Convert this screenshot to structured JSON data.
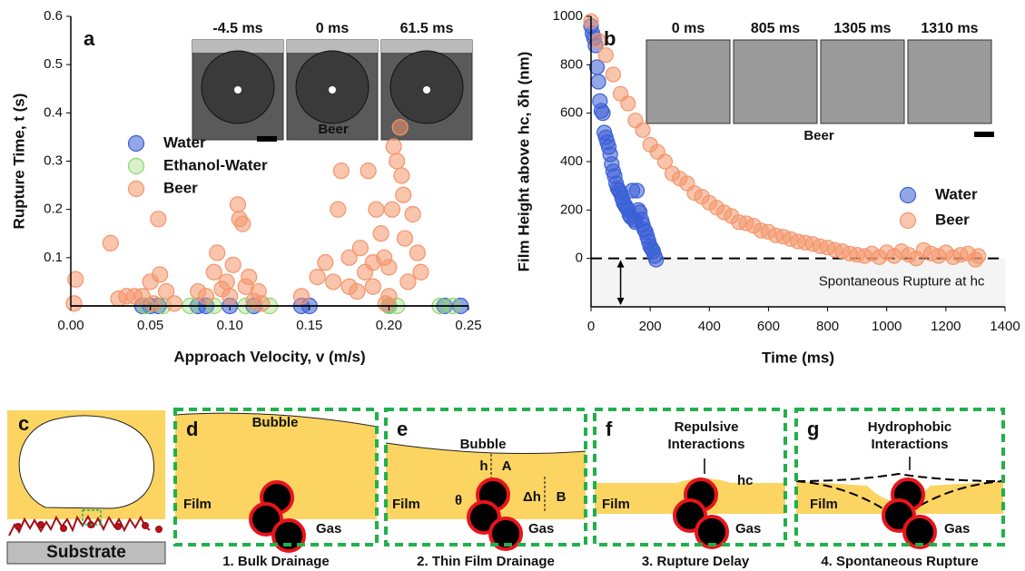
{
  "chart_data": [
    {
      "type": "scatter",
      "panel_label": "a",
      "x_label": "Approach Velocity, v (m/s)",
      "y_label": "Rupture Time, t (s)",
      "xlim": [
        0,
        0.25
      ],
      "ylim": [
        0,
        0.6
      ],
      "xticks": [
        {
          "value": 0,
          "label": "0.00"
        },
        0.05,
        {
          "value": 0.1,
          "label": "0.10"
        },
        0.15,
        {
          "value": 0.2,
          "label": "0.20"
        },
        0.25
      ],
      "yticks": [
        0.1,
        0.2,
        0.3,
        0.4,
        0.5,
        0.6
      ],
      "legend": "left",
      "inset_labels": [
        "-4.5 ms",
        "0 ms",
        "61.5 ms"
      ],
      "inset_caption": "Beer",
      "series": [
        {
          "name": "Water",
          "color": "#3b5fd6",
          "x": [
            0.045,
            0.05,
            0.055,
            0.08,
            0.085,
            0.1,
            0.115,
            0.145,
            0.15,
            0.2,
            0.235,
            0.245
          ],
          "y": [
            0,
            0,
            0,
            0,
            0,
            0,
            0,
            0,
            0,
            0,
            0,
            0
          ]
        },
        {
          "name": "Ethanol-Water",
          "color": "#8ed86a",
          "x": [
            0.047,
            0.058,
            0.075,
            0.09,
            0.11,
            0.125,
            0.2,
            0.205,
            0.232,
            0.24
          ],
          "y": [
            0,
            0,
            0,
            0,
            0,
            0,
            0,
            0,
            0,
            0
          ]
        },
        {
          "name": "Beer",
          "color": "#f4956a",
          "x": [
            0.003,
            0.002,
            0.025,
            0.03,
            0.035,
            0.04,
            0.045,
            0.05,
            0.052,
            0.055,
            0.056,
            0.06,
            0.065,
            0.08,
            0.085,
            0.09,
            0.092,
            0.095,
            0.098,
            0.1,
            0.102,
            0.105,
            0.106,
            0.108,
            0.11,
            0.112,
            0.115,
            0.118,
            0.12,
            0.145,
            0.155,
            0.16,
            0.165,
            0.168,
            0.17,
            0.175,
            0.18,
            0.182,
            0.185,
            0.187,
            0.19,
            0.192,
            0.195,
            0.197,
            0.2,
            0.202,
            0.205,
            0.207,
            0.208,
            0.21,
            0.212,
            0.215,
            0.218,
            0.22,
            0.2,
            0.19,
            0.175,
            0.203,
            0.209,
            0.198
          ],
          "y": [
            0.055,
            0.005,
            0.13,
            0.015,
            0.02,
            0.02,
            0.02,
            0.05,
            0.005,
            0.18,
            0.065,
            0.03,
            0.005,
            0.03,
            0.02,
            0.07,
            0.11,
            0.035,
            0.05,
            0.02,
            0.085,
            0.21,
            0.18,
            0.17,
            0.04,
            0.06,
            0.01,
            0.03,
            0.005,
            0.02,
            0.06,
            0.09,
            0.05,
            0.2,
            0.28,
            0.1,
            0.03,
            0.12,
            0.07,
            0.28,
            0.09,
            0.2,
            0.15,
            0.1,
            0.08,
            0.2,
            0.3,
            0.37,
            0.27,
            0.14,
            0.05,
            0.19,
            0.11,
            0.07,
            0.02,
            0.04,
            0.04,
            0.33,
            0.23,
            0.005
          ]
        }
      ]
    },
    {
      "type": "scatter",
      "panel_label": "b",
      "x_label": "Time (ms)",
      "y_label": "Film Height above hc, δh (nm)",
      "xlim": [
        0,
        1400
      ],
      "ylim": [
        -200,
        1000
      ],
      "xticks": [
        0,
        200,
        400,
        600,
        800,
        1000,
        1200,
        1400
      ],
      "yticks": [
        0,
        200,
        400,
        600,
        800,
        1000
      ],
      "legend": "right",
      "hline": 0,
      "annotation": "Spontaneous Rupture at hc",
      "inset_labels": [
        "0 ms",
        "805 ms",
        "1305 ms",
        "1310 ms"
      ],
      "inset_caption": "Beer",
      "series": [
        {
          "name": "Water",
          "color": "#3b5fd6",
          "x": [
            0,
            5,
            10,
            15,
            20,
            25,
            30,
            35,
            40,
            45,
            50,
            55,
            60,
            65,
            70,
            75,
            80,
            85,
            90,
            95,
            100,
            105,
            110,
            115,
            120,
            125,
            130,
            135,
            140,
            145,
            150,
            155,
            160,
            165,
            170,
            175,
            180,
            185,
            190,
            195,
            200,
            205,
            210,
            215,
            220
          ],
          "y": [
            960,
            930,
            910,
            880,
            790,
            730,
            650,
            610,
            600,
            520,
            500,
            480,
            460,
            430,
            390,
            360,
            340,
            310,
            290,
            280,
            270,
            250,
            230,
            220,
            210,
            200,
            180,
            170,
            280,
            160,
            150,
            280,
            200,
            190,
            160,
            140,
            120,
            110,
            90,
            70,
            50,
            40,
            30,
            10,
            -5
          ]
        },
        {
          "name": "Beer",
          "color": "#f4956a",
          "x": [
            0,
            25,
            50,
            75,
            100,
            125,
            150,
            175,
            200,
            225,
            250,
            275,
            300,
            325,
            350,
            375,
            400,
            425,
            450,
            475,
            500,
            525,
            550,
            575,
            600,
            625,
            650,
            675,
            700,
            725,
            750,
            775,
            800,
            825,
            850,
            875,
            900,
            925,
            950,
            975,
            1000,
            1025,
            1050,
            1075,
            1100,
            1125,
            1150,
            1175,
            1200,
            1225,
            1250,
            1275,
            1300,
            1310
          ],
          "y": [
            980,
            900,
            840,
            760,
            680,
            640,
            570,
            530,
            470,
            440,
            400,
            350,
            330,
            310,
            270,
            255,
            230,
            210,
            190,
            175,
            150,
            145,
            135,
            115,
            110,
            95,
            90,
            80,
            70,
            65,
            60,
            50,
            45,
            35,
            30,
            20,
            15,
            10,
            20,
            5,
            25,
            10,
            30,
            15,
            0,
            35,
            20,
            10,
            25,
            5,
            15,
            20,
            -5,
            10
          ]
        }
      ]
    }
  ],
  "diagram": {
    "panels": [
      {
        "letter": "c",
        "labels": [
          "Substrate"
        ]
      },
      {
        "letter": "d",
        "caption": "1. Bulk Drainage",
        "labels": [
          "Bubble",
          "Film",
          "Gas"
        ]
      },
      {
        "letter": "e",
        "caption": "2. Thin Film Drainage",
        "labels": [
          "Bubble",
          "h",
          "A",
          "Δh",
          "B",
          "Film",
          "θ",
          "Gas"
        ]
      },
      {
        "letter": "f",
        "caption": "3. Rupture Delay",
        "labels": [
          "Repulsive",
          "Interactions",
          "hc",
          "Film",
          "Gas"
        ]
      },
      {
        "letter": "g",
        "caption": "4. Spontaneous Rupture",
        "labels": [
          "Hydrophobic",
          "Interactions",
          "Film",
          "Gas"
        ]
      }
    ]
  }
}
